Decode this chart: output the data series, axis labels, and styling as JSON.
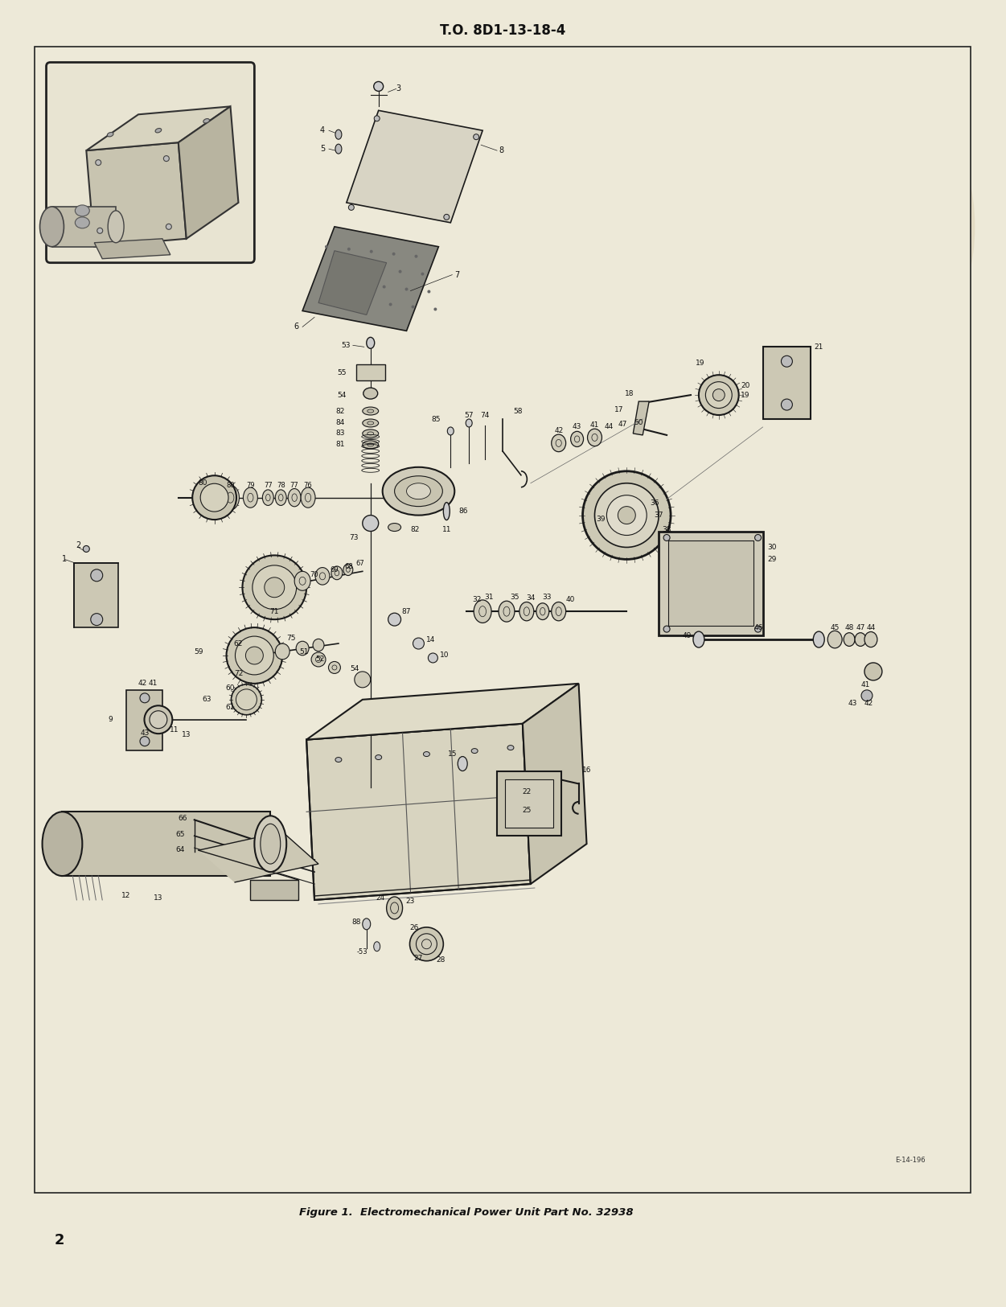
{
  "page_bg": "#ede9d8",
  "drawing_bg": "#ede9d8",
  "title": "T.O. 8D1-13-18-4",
  "title_fontsize": 12,
  "caption": "Figure 1.  Electromechanical Power Unit Part No. 32938",
  "caption_fontsize": 9.5,
  "page_number": "2",
  "ref_label": "E-14-196",
  "line_color": "#1a1a1a",
  "border_color": "#111111"
}
